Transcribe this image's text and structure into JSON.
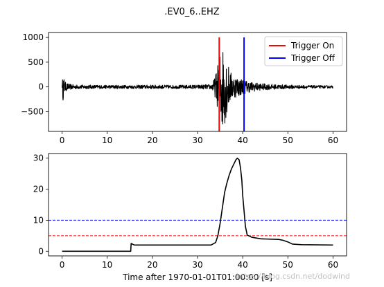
{
  "title": ".EV0_6..EHZ",
  "watermark": "https://blog.csdn.net/dodwind",
  "chart_data": [
    {
      "type": "line",
      "panel": "top",
      "xlabel": "",
      "ylabel": "",
      "xlim": [
        -3,
        63
      ],
      "ylim": [
        -900,
        1100
      ],
      "xticks": [
        0,
        10,
        20,
        30,
        40,
        50,
        60
      ],
      "yticks": [
        -500,
        0,
        500,
        1000
      ],
      "grid": false,
      "legend": {
        "placement": "top-right",
        "entries": [
          {
            "label": "Trigger On",
            "color": "#ff0000"
          },
          {
            "label": "Trigger Off",
            "color": "#0000ff"
          }
        ]
      },
      "series": [
        {
          "color": "#000000",
          "envelope": [
            [
              0,
              20
            ],
            [
              0.2,
              280
            ],
            [
              0.5,
              150
            ],
            [
              0.8,
              90
            ],
            [
              1.5,
              60
            ],
            [
              2.5,
              45
            ],
            [
              5,
              40
            ],
            [
              10,
              35
            ],
            [
              15,
              35
            ],
            [
              20,
              40
            ],
            [
              25,
              35
            ],
            [
              30,
              40
            ],
            [
              33,
              50
            ],
            [
              33.8,
              180
            ],
            [
              34.2,
              330
            ],
            [
              34.6,
              500
            ],
            [
              35,
              750
            ],
            [
              35.4,
              900
            ],
            [
              35.8,
              820
            ],
            [
              36.2,
              700
            ],
            [
              36.6,
              550
            ],
            [
              37,
              380
            ],
            [
              37.6,
              260
            ],
            [
              38.2,
              220
            ],
            [
              39,
              200
            ],
            [
              40,
              160
            ],
            [
              41,
              120
            ],
            [
              42,
              100
            ],
            [
              44,
              70
            ],
            [
              47,
              50
            ],
            [
              50,
              40
            ],
            [
              55,
              30
            ],
            [
              60,
              25
            ]
          ]
        }
      ],
      "vlines": [
        {
          "name": "Trigger On",
          "x": 34.8,
          "ymin": -900,
          "ymax": 1000,
          "color": "#ff0000"
        },
        {
          "name": "Trigger Off",
          "x": 40.3,
          "ymin": -900,
          "ymax": 1000,
          "color": "#0000ff"
        }
      ]
    },
    {
      "type": "line",
      "panel": "bottom",
      "xlabel": "Time after 1970-01-01T01:00:00 [s]",
      "ylabel": "",
      "xlim": [
        -3,
        63
      ],
      "ylim": [
        -1.5,
        31.5
      ],
      "xticks": [
        0,
        10,
        20,
        30,
        40,
        50,
        60
      ],
      "yticks": [
        0,
        10,
        20,
        30
      ],
      "grid": false,
      "series": [
        {
          "color": "#000000",
          "points": [
            [
              0,
              0
            ],
            [
              15.2,
              0
            ],
            [
              15.3,
              2.5
            ],
            [
              16,
              2.0
            ],
            [
              20,
              2.0
            ],
            [
              25,
              2.0
            ],
            [
              30,
              2.0
            ],
            [
              33,
              2.0
            ],
            [
              34,
              2.8
            ],
            [
              34.5,
              5
            ],
            [
              35,
              9
            ],
            [
              35.5,
              14
            ],
            [
              36,
              19
            ],
            [
              36.5,
              22
            ],
            [
              37,
              24.5
            ],
            [
              37.5,
              26.5
            ],
            [
              38,
              28
            ],
            [
              38.5,
              29.5
            ],
            [
              38.8,
              30
            ],
            [
              39.2,
              29.5
            ],
            [
              39.5,
              27
            ],
            [
              39.8,
              23
            ],
            [
              40,
              18
            ],
            [
              40.3,
              13
            ],
            [
              40.6,
              8
            ],
            [
              41,
              5.2
            ],
            [
              42,
              4.5
            ],
            [
              44,
              4.0
            ],
            [
              48,
              3.8
            ],
            [
              49,
              3.5
            ],
            [
              50,
              3.0
            ],
            [
              51,
              2.3
            ],
            [
              53,
              2.1
            ],
            [
              60,
              2.0
            ]
          ]
        }
      ],
      "hlines": [
        {
          "y": 10,
          "color": "#0000ff",
          "style": "dashed"
        },
        {
          "y": 5,
          "color": "#ff0000",
          "style": "dashed"
        }
      ]
    }
  ]
}
